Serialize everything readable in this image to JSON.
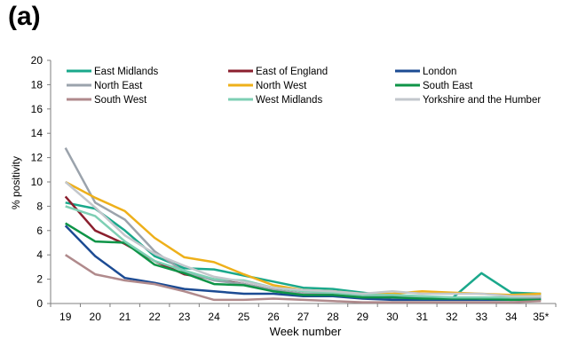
{
  "panel_label": "(a)",
  "chart_data": {
    "type": "line",
    "xlabel": "Week number",
    "ylabel": "% positivity",
    "ylim": [
      0,
      20
    ],
    "yticks": [
      0,
      2,
      4,
      6,
      8,
      10,
      12,
      14,
      16,
      18,
      20
    ],
    "categories": [
      "19",
      "20",
      "21",
      "22",
      "23",
      "24",
      "25",
      "26",
      "27",
      "28",
      "29",
      "30",
      "31",
      "32",
      "33",
      "34",
      "35*"
    ],
    "grid": false,
    "legend_position": "top",
    "series": [
      {
        "name": "East Midlands",
        "color": "#1aa88b",
        "values": [
          8.3,
          7.8,
          6.0,
          3.9,
          2.9,
          2.8,
          2.3,
          1.8,
          1.3,
          1.2,
          0.9,
          0.6,
          0.5,
          0.4,
          2.5,
          0.9,
          0.8
        ]
      },
      {
        "name": "East of England",
        "color": "#8b1f2e",
        "values": [
          8.8,
          6.0,
          4.9,
          3.5,
          2.4,
          2.0,
          1.6,
          1.1,
          0.8,
          0.7,
          0.6,
          0.5,
          0.5,
          0.4,
          0.4,
          0.4,
          0.6
        ]
      },
      {
        "name": "London",
        "color": "#1c4b93",
        "values": [
          6.4,
          3.9,
          2.1,
          1.7,
          1.2,
          1.0,
          0.8,
          0.8,
          0.6,
          0.6,
          0.4,
          0.3,
          0.3,
          0.3,
          0.3,
          0.3,
          0.4
        ]
      },
      {
        "name": "North East",
        "color": "#9ba3ac",
        "values": [
          12.8,
          8.3,
          6.9,
          4.3,
          2.6,
          1.9,
          1.6,
          1.1,
          0.8,
          0.8,
          0.6,
          0.5,
          0.5,
          0.5,
          0.4,
          0.4,
          0.5
        ]
      },
      {
        "name": "North West",
        "color": "#eeb01a",
        "values": [
          10.0,
          8.7,
          7.6,
          5.4,
          3.8,
          3.4,
          2.4,
          1.5,
          1.1,
          1.0,
          0.8,
          0.8,
          1.0,
          0.9,
          0.8,
          0.7,
          0.8
        ]
      },
      {
        "name": "South East",
        "color": "#0e9447",
        "values": [
          6.6,
          5.1,
          5.0,
          3.2,
          2.5,
          1.6,
          1.5,
          1.0,
          0.7,
          0.7,
          0.5,
          0.5,
          0.4,
          0.4,
          0.4,
          0.3,
          0.3
        ]
      },
      {
        "name": "South West",
        "color": "#b08a8c",
        "values": [
          4.0,
          2.4,
          1.9,
          1.6,
          1.0,
          0.3,
          0.3,
          0.4,
          0.3,
          0.2,
          0.1,
          0.1,
          0.1,
          0.1,
          0.1,
          0.1,
          0.2
        ]
      },
      {
        "name": "West Midlands",
        "color": "#7ecfb4",
        "values": [
          8.0,
          7.2,
          5.1,
          3.5,
          2.7,
          2.0,
          1.9,
          1.3,
          1.0,
          0.9,
          0.7,
          0.7,
          0.6,
          0.5,
          0.5,
          0.5,
          0.6
        ]
      },
      {
        "name": "Yorkshire and the Humber",
        "color": "#c3c7cc",
        "values": [
          10.0,
          7.9,
          5.6,
          4.1,
          3.1,
          2.2,
          1.8,
          1.3,
          1.1,
          1.0,
          0.8,
          1.0,
          0.8,
          0.8,
          0.8,
          0.6,
          0.6
        ]
      }
    ]
  }
}
